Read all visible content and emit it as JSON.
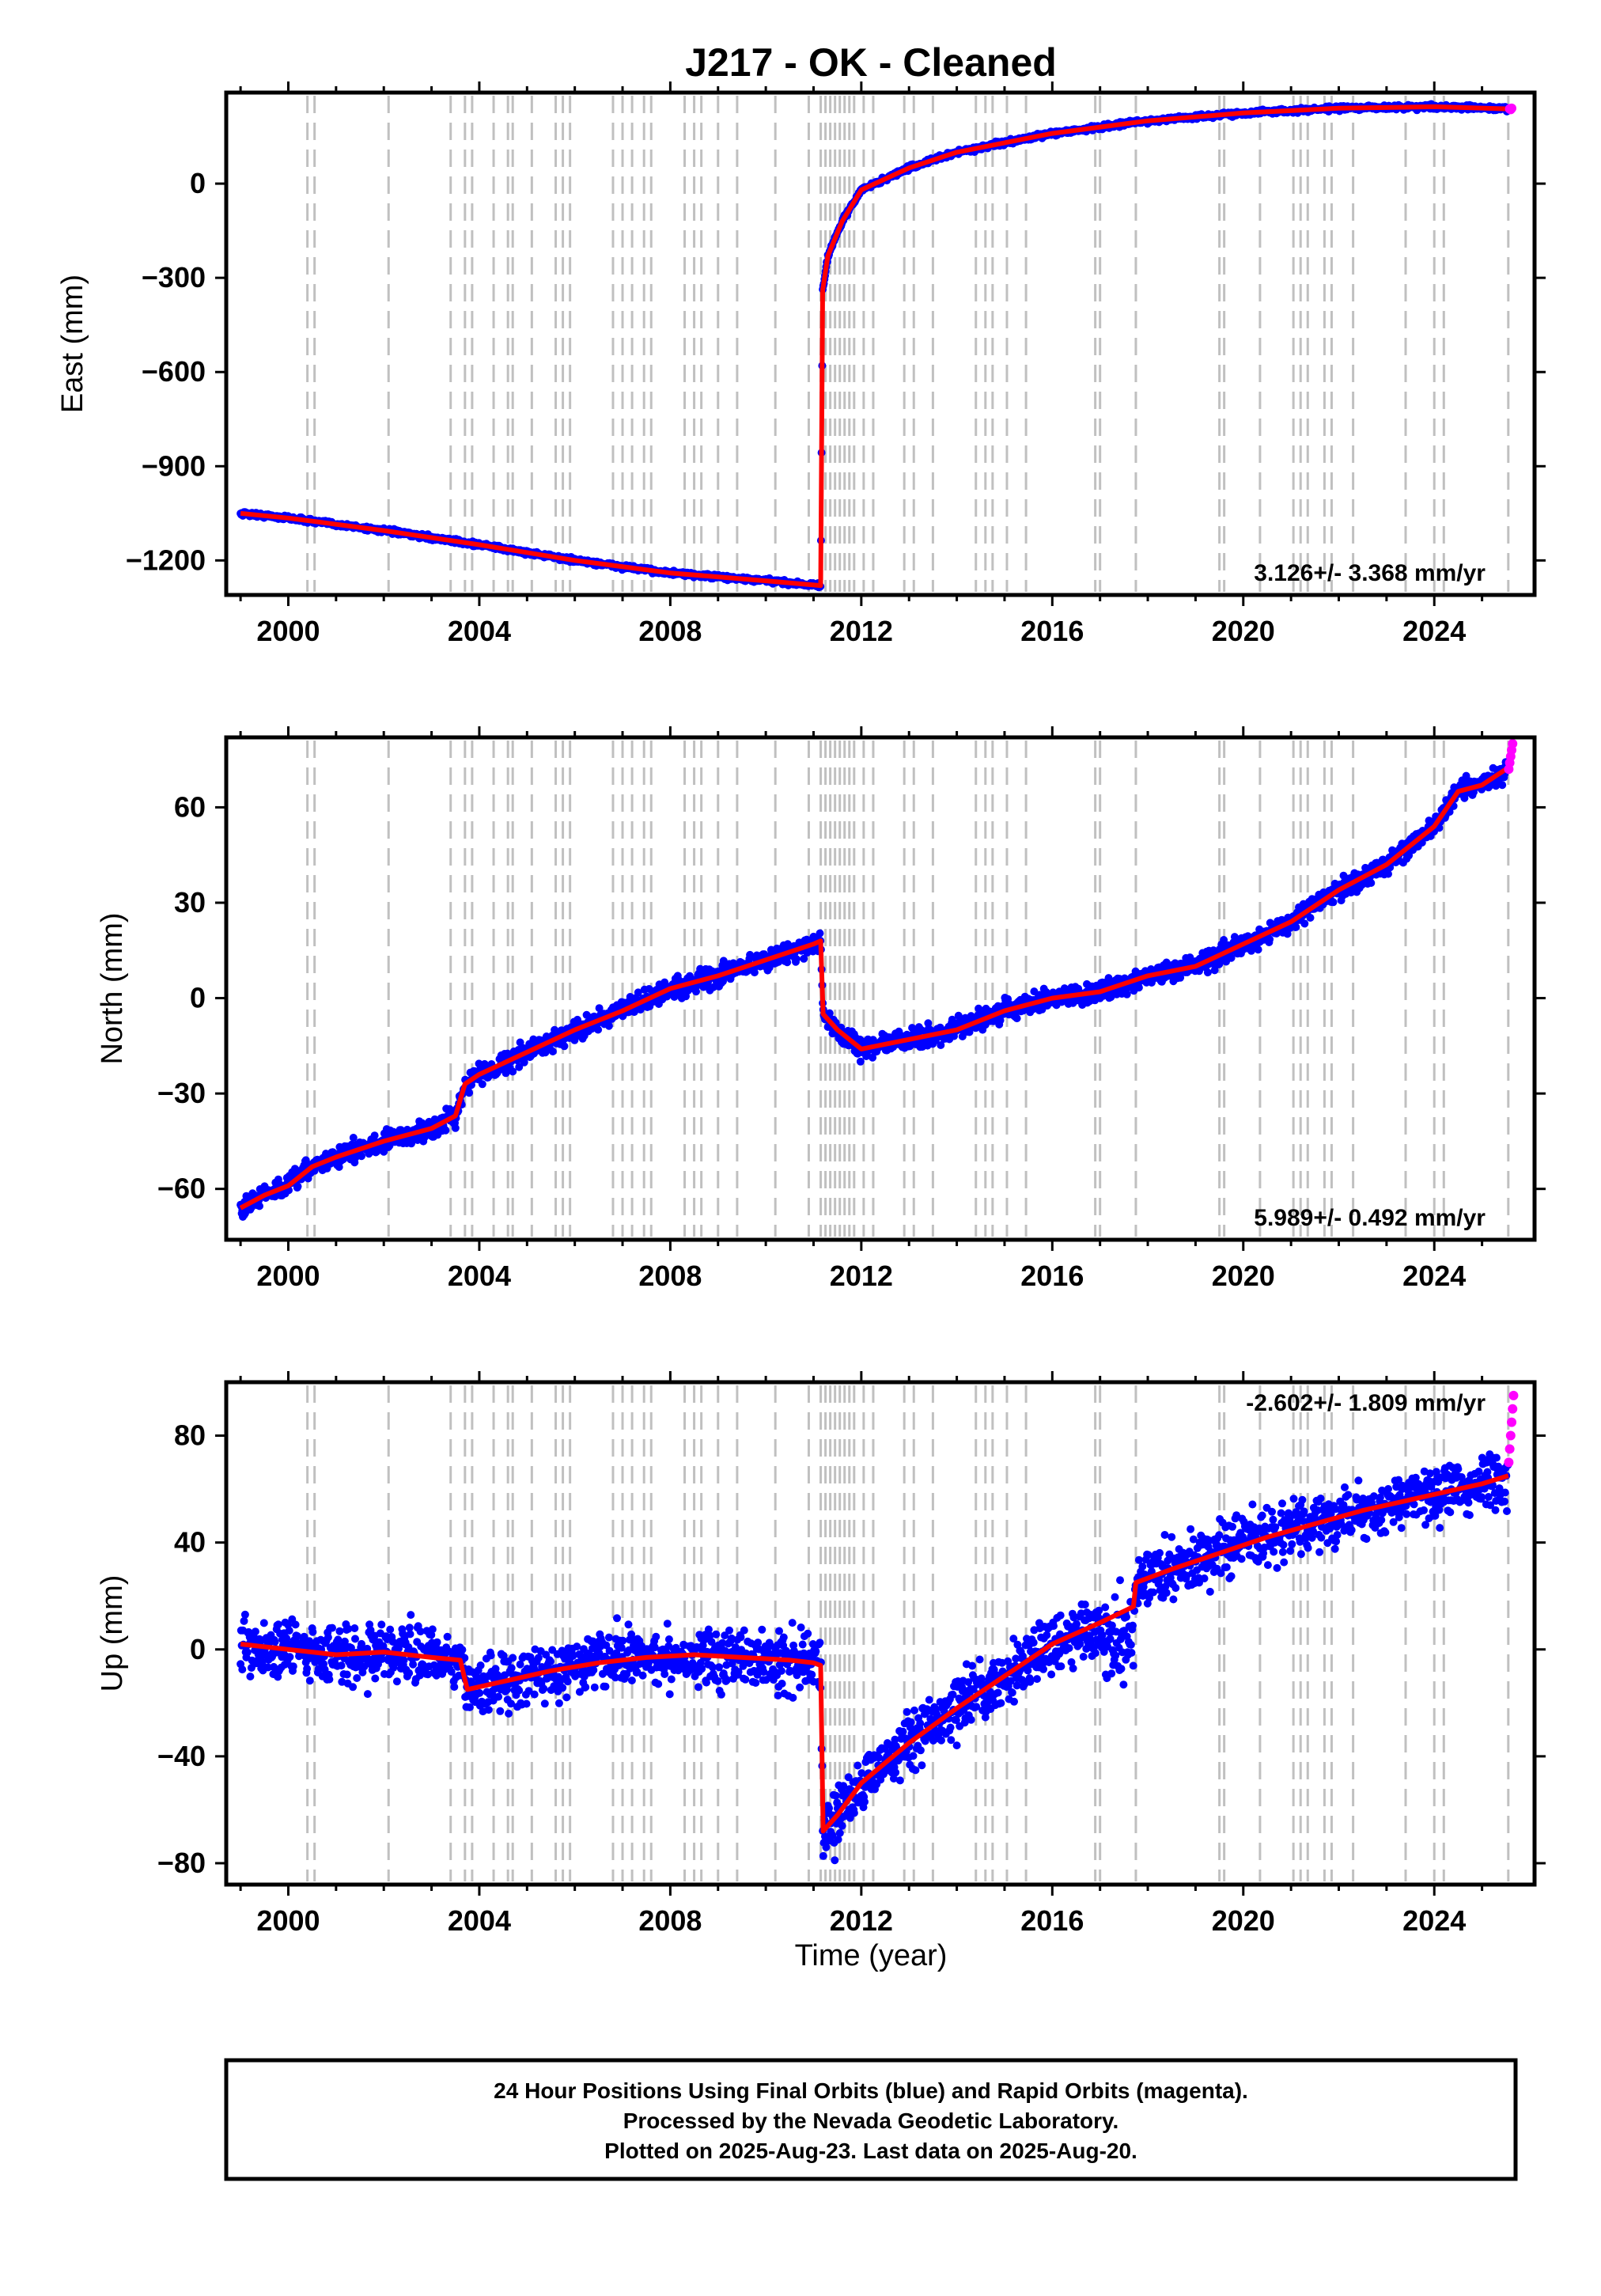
{
  "title": "J217  - OK - Cleaned",
  "xlabel": "Time (year)",
  "colors": {
    "final_orbits": "#0000ff",
    "rapid_orbits": "#ff00ff",
    "model": "#ff0000",
    "offset_lines": "#c0c0c0"
  },
  "footer": {
    "line1": "24 Hour Positions Using Final Orbits (blue) and Rapid Orbits (magenta).",
    "line2": "Processed by the Nevada Geodetic Laboratory.",
    "line3": "Plotted on 2025-Aug-23. Last data on 2025-Aug-20."
  },
  "chart_data": [
    {
      "type": "scatter",
      "ylabel": "East (mm)",
      "rate_label": "3.126+/- 3.368 mm/yr",
      "xlim": [
        1998.7,
        2026.1
      ],
      "ylim": [
        -1310,
        290
      ],
      "xticks": [
        2000,
        2004,
        2008,
        2012,
        2016,
        2020,
        2024
      ],
      "yticks": [
        -1200,
        -900,
        -600,
        -300,
        0
      ],
      "offset_lines": [
        2000.4,
        2000.55,
        2002.1,
        2003.4,
        2003.7,
        2003.85,
        2004.3,
        2004.6,
        2004.7,
        2005.1,
        2005.6,
        2005.75,
        2005.9,
        2006.8,
        2007.0,
        2007.2,
        2007.45,
        2007.6,
        2008.3,
        2008.5,
        2008.65,
        2009.0,
        2009.4,
        2010.2,
        2010.9,
        2011.15,
        2011.25,
        2011.35,
        2011.45,
        2011.55,
        2011.65,
        2011.75,
        2011.85,
        2012.05,
        2012.25,
        2012.9,
        2013.1,
        2013.5,
        2014.4,
        2014.6,
        2014.75,
        2015.05,
        2015.45,
        2016.9,
        2017.0,
        2017.75,
        2019.5,
        2019.6,
        2020.35,
        2021.05,
        2021.2,
        2021.35,
        2021.7,
        2021.85,
        2022.3,
        2023.4,
        2024.0,
        2024.2,
        2025.55
      ],
      "model_series": {
        "name": "",
        "x": [
          1999.0,
          2000.0,
          2000.5,
          2002.0,
          2004.0,
          2006.0,
          2008.0,
          2010.0,
          2011.15,
          2011.19,
          2011.3,
          2011.6,
          2012.0,
          2013.0,
          2014.0,
          2016.0,
          2018.0,
          2020.0,
          2022.0,
          2024.0,
          2025.55
        ],
        "y": [
          -1050,
          -1065,
          -1075,
          -1105,
          -1150,
          -1200,
          -1240,
          -1265,
          -1280,
          -340,
          -230,
          -120,
          -20,
          50,
          100,
          160,
          200,
          225,
          240,
          245,
          238
        ]
      },
      "rapid_points": {
        "x": [
          2025.58,
          2025.6,
          2025.62
        ],
        "y": [
          238,
          236,
          240
        ]
      }
    },
    {
      "type": "scatter",
      "ylabel": "North (mm)",
      "rate_label": "5.989+/- 0.492 mm/yr",
      "xlim": [
        1998.7,
        2026.1
      ],
      "ylim": [
        -76,
        82
      ],
      "xticks": [
        2000,
        2004,
        2008,
        2012,
        2016,
        2020,
        2024
      ],
      "yticks": [
        -60,
        -30,
        0,
        30,
        60
      ],
      "offset_lines": [
        2000.4,
        2000.55,
        2002.1,
        2003.4,
        2003.7,
        2003.85,
        2004.3,
        2004.6,
        2004.7,
        2005.1,
        2005.6,
        2005.75,
        2005.9,
        2006.8,
        2007.0,
        2007.2,
        2007.45,
        2007.6,
        2008.3,
        2008.5,
        2008.65,
        2009.0,
        2009.4,
        2010.2,
        2010.9,
        2011.15,
        2011.25,
        2011.35,
        2011.45,
        2011.55,
        2011.65,
        2011.75,
        2011.85,
        2012.05,
        2012.25,
        2012.9,
        2013.1,
        2013.5,
        2014.4,
        2014.6,
        2014.75,
        2015.05,
        2015.45,
        2016.9,
        2017.0,
        2017.75,
        2019.5,
        2019.6,
        2020.35,
        2021.05,
        2021.2,
        2021.35,
        2021.7,
        2021.85,
        2022.3,
        2023.4,
        2024.0,
        2024.2,
        2025.55
      ],
      "model_series": {
        "name": "",
        "x": [
          1999.0,
          1999.5,
          2000.0,
          2000.5,
          2001.0,
          2002.0,
          2003.0,
          2003.5,
          2003.7,
          2004.0,
          2005.0,
          2006.0,
          2007.0,
          2008.0,
          2009.0,
          2010.0,
          2011.0,
          2011.15,
          2011.2,
          2011.5,
          2012.0,
          2013.0,
          2014.0,
          2015.0,
          2016.0,
          2017.0,
          2018.0,
          2019.0,
          2020.0,
          2021.0,
          2022.0,
          2023.0,
          2024.0,
          2024.5,
          2025.0,
          2025.5
        ],
        "y": [
          -66,
          -62,
          -59,
          -53,
          -50,
          -45,
          -41,
          -37,
          -27,
          -24,
          -17,
          -10,
          -4,
          3,
          7,
          12,
          17,
          18,
          -5,
          -10,
          -16,
          -13,
          -10,
          -4,
          0,
          2,
          7,
          10,
          17,
          24,
          34,
          42,
          54,
          65,
          67,
          72
        ]
      },
      "rapid_points": {
        "x": [
          2025.56,
          2025.58,
          2025.6,
          2025.62,
          2025.64
        ],
        "y": [
          72,
          74,
          76,
          78,
          80
        ]
      }
    },
    {
      "type": "scatter",
      "ylabel": "Up (mm)",
      "rate_label": "-2.602+/- 1.809 mm/yr",
      "xlim": [
        1998.7,
        2026.1
      ],
      "ylim": [
        -88,
        100
      ],
      "xticks": [
        2000,
        2004,
        2008,
        2012,
        2016,
        2020,
        2024
      ],
      "yticks": [
        -80,
        -40,
        0,
        40,
        80
      ],
      "offset_lines": [
        2000.4,
        2000.55,
        2002.1,
        2003.4,
        2003.7,
        2003.85,
        2004.3,
        2004.6,
        2004.7,
        2005.1,
        2005.6,
        2005.75,
        2005.9,
        2006.8,
        2007.0,
        2007.2,
        2007.45,
        2007.6,
        2008.3,
        2008.5,
        2008.65,
        2009.0,
        2009.4,
        2010.2,
        2010.9,
        2011.15,
        2011.25,
        2011.35,
        2011.45,
        2011.55,
        2011.65,
        2011.75,
        2011.85,
        2012.05,
        2012.25,
        2012.9,
        2013.1,
        2013.5,
        2014.4,
        2014.6,
        2014.75,
        2015.05,
        2015.45,
        2016.9,
        2017.0,
        2017.75,
        2019.5,
        2019.6,
        2020.35,
        2021.05,
        2021.2,
        2021.35,
        2021.7,
        2021.85,
        2022.3,
        2023.4,
        2024.0,
        2024.2,
        2025.55
      ],
      "model_series": {
        "name": "",
        "x": [
          1999.0,
          2000.0,
          2001.0,
          2002.0,
          2003.0,
          2003.6,
          2003.75,
          2004.5,
          2005.5,
          2006.5,
          2007.5,
          2008.5,
          2009.5,
          2010.5,
          2011.0,
          2011.15,
          2011.2,
          2011.5,
          2012.0,
          2013.0,
          2014.0,
          2015.0,
          2016.0,
          2017.0,
          2017.7,
          2017.75,
          2018.5,
          2019.5,
          2020.5,
          2021.5,
          2022.5,
          2023.5,
          2024.5,
          2025.0,
          2025.55
        ],
        "y": [
          2,
          0,
          -2,
          -1,
          -3,
          -4,
          -15,
          -12,
          -8,
          -5,
          -3,
          -2,
          -3,
          -4,
          -5,
          -6,
          -68,
          -62,
          -50,
          -35,
          -22,
          -10,
          2,
          10,
          16,
          25,
          30,
          36,
          42,
          47,
          52,
          56,
          60,
          62,
          65
        ]
      },
      "rapid_points": {
        "x": [
          2025.56,
          2025.58,
          2025.6,
          2025.62,
          2025.64,
          2025.66
        ],
        "y": [
          70,
          75,
          80,
          85,
          90,
          95
        ]
      }
    }
  ]
}
